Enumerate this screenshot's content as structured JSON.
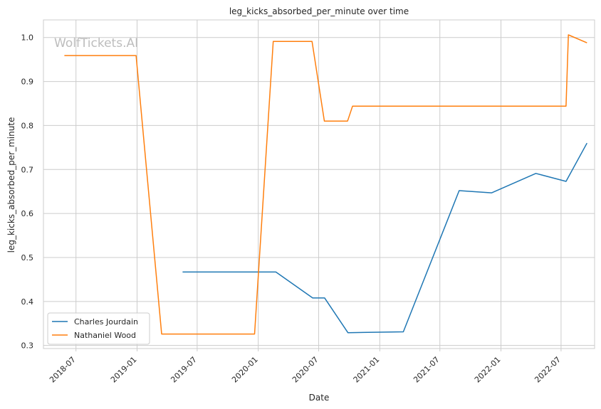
{
  "chart_data": {
    "type": "line",
    "title": "leg_kicks_absorbed_per_minute over time",
    "xlabel": "Date",
    "ylabel": "leg_kicks_absorbed_per_minute",
    "watermark": "WolfTickets.AI",
    "x_ticks": [
      "2018-07",
      "2019-01",
      "2019-07",
      "2020-01",
      "2020-07",
      "2021-01",
      "2021-07",
      "2022-01",
      "2022-07"
    ],
    "y_ticks": [
      "0.3",
      "0.4",
      "0.5",
      "0.6",
      "0.7",
      "0.8",
      "0.9",
      "1.0"
    ],
    "xlim": [
      "2018-03-25",
      "2022-10-10"
    ],
    "ylim": [
      0.293,
      1.04
    ],
    "grid": true,
    "legend_position": "lower-left",
    "series": [
      {
        "name": "Charles Jourdain",
        "color": "#1f77b4",
        "points": [
          [
            "2019-05-18",
            0.467
          ],
          [
            "2020-02-23",
            0.467
          ],
          [
            "2020-06-13",
            0.408
          ],
          [
            "2020-07-19",
            0.408
          ],
          [
            "2020-09-27",
            0.329
          ],
          [
            "2021-03-13",
            0.331
          ],
          [
            "2021-08-28",
            0.652
          ],
          [
            "2021-12-04",
            0.647
          ],
          [
            "2022-04-16",
            0.691
          ],
          [
            "2022-07-16",
            0.673
          ],
          [
            "2022-09-17",
            0.76
          ]
        ]
      },
      {
        "name": "Nathaniel Wood",
        "color": "#ff7f0e",
        "points": [
          [
            "2018-05-27",
            0.959
          ],
          [
            "2018-12-29",
            0.959
          ],
          [
            "2019-03-16",
            0.326
          ],
          [
            "2019-12-21",
            0.326
          ],
          [
            "2020-02-15",
            0.991
          ],
          [
            "2020-06-11",
            0.991
          ],
          [
            "2020-07-18",
            0.81
          ],
          [
            "2020-09-26",
            0.81
          ],
          [
            "2020-10-11",
            0.844
          ],
          [
            "2022-07-16",
            0.844
          ],
          [
            "2022-07-23",
            1.006
          ],
          [
            "2022-09-17",
            0.988
          ]
        ]
      }
    ]
  }
}
